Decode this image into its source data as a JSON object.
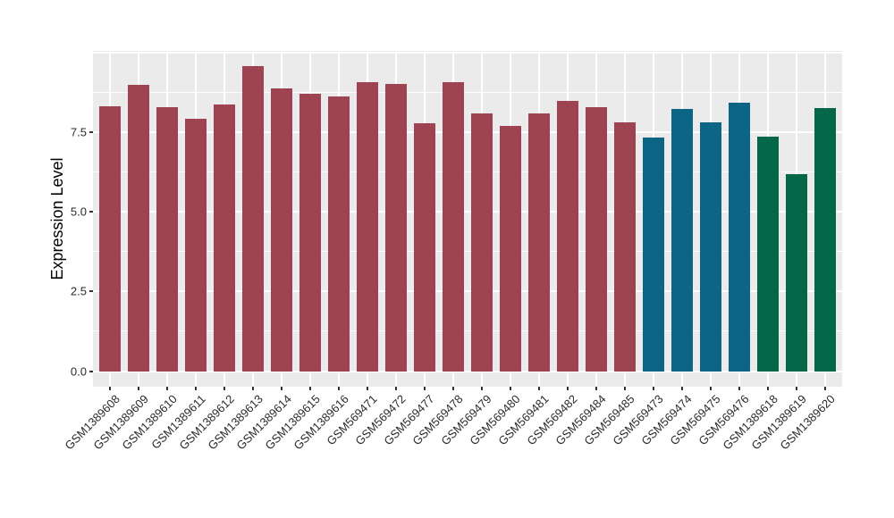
{
  "figure": {
    "background": "#FFFFFF",
    "panel_background": "#EBEBEB",
    "grid_color": "#FFFFFF",
    "tick_color": "#333333",
    "axis_text_color": "#2B2B2B"
  },
  "chart_data": {
    "type": "bar",
    "title": "",
    "xlabel": "",
    "ylabel": "Expression Level",
    "legend": "none",
    "grid": true,
    "ylim": [
      -0.49,
      10.06
    ],
    "baseline": 0,
    "yticks": {
      "values": [
        0,
        2.5,
        5,
        7.5
      ],
      "labels": [
        "0.0",
        "2.5",
        "5.0",
        "7.5"
      ]
    },
    "grid_major_y": [
      0,
      2.5,
      5,
      7.5,
      10
    ],
    "grid_minor_y": [
      1.25,
      3.75,
      6.25,
      8.75
    ],
    "palette": {
      "maroon": "#9E4352",
      "blue": "#0D6586",
      "green": "#046748"
    },
    "categories": [
      "GSM1389608",
      "GSM1389609",
      "GSM1389610",
      "GSM1389611",
      "GSM1389612",
      "GSM1389613",
      "GSM1389614",
      "GSM1389615",
      "GSM1389616",
      "GSM569471",
      "GSM569472",
      "GSM569477",
      "GSM569478",
      "GSM569479",
      "GSM569480",
      "GSM569481",
      "GSM569482",
      "GSM569484",
      "GSM569485",
      "GSM569473",
      "GSM569474",
      "GSM569475",
      "GSM569476",
      "GSM1389618",
      "GSM1389619",
      "GSM1389620"
    ],
    "values": [
      8.33,
      8.98,
      8.3,
      7.93,
      8.38,
      9.59,
      8.87,
      8.7,
      8.62,
      9.08,
      9.02,
      7.79,
      9.07,
      8.1,
      7.69,
      8.1,
      8.48,
      8.28,
      7.82,
      7.35,
      8.24,
      7.82,
      8.44,
      7.37,
      6.2,
      8.26
    ],
    "bar_colors": [
      "#9E4352",
      "#9E4352",
      "#9E4352",
      "#9E4352",
      "#9E4352",
      "#9E4352",
      "#9E4352",
      "#9E4352",
      "#9E4352",
      "#9E4352",
      "#9E4352",
      "#9E4352",
      "#9E4352",
      "#9E4352",
      "#9E4352",
      "#9E4352",
      "#9E4352",
      "#9E4352",
      "#9E4352",
      "#0D6586",
      "#0D6586",
      "#0D6586",
      "#0D6586",
      "#046748",
      "#046748",
      "#046748"
    ]
  }
}
